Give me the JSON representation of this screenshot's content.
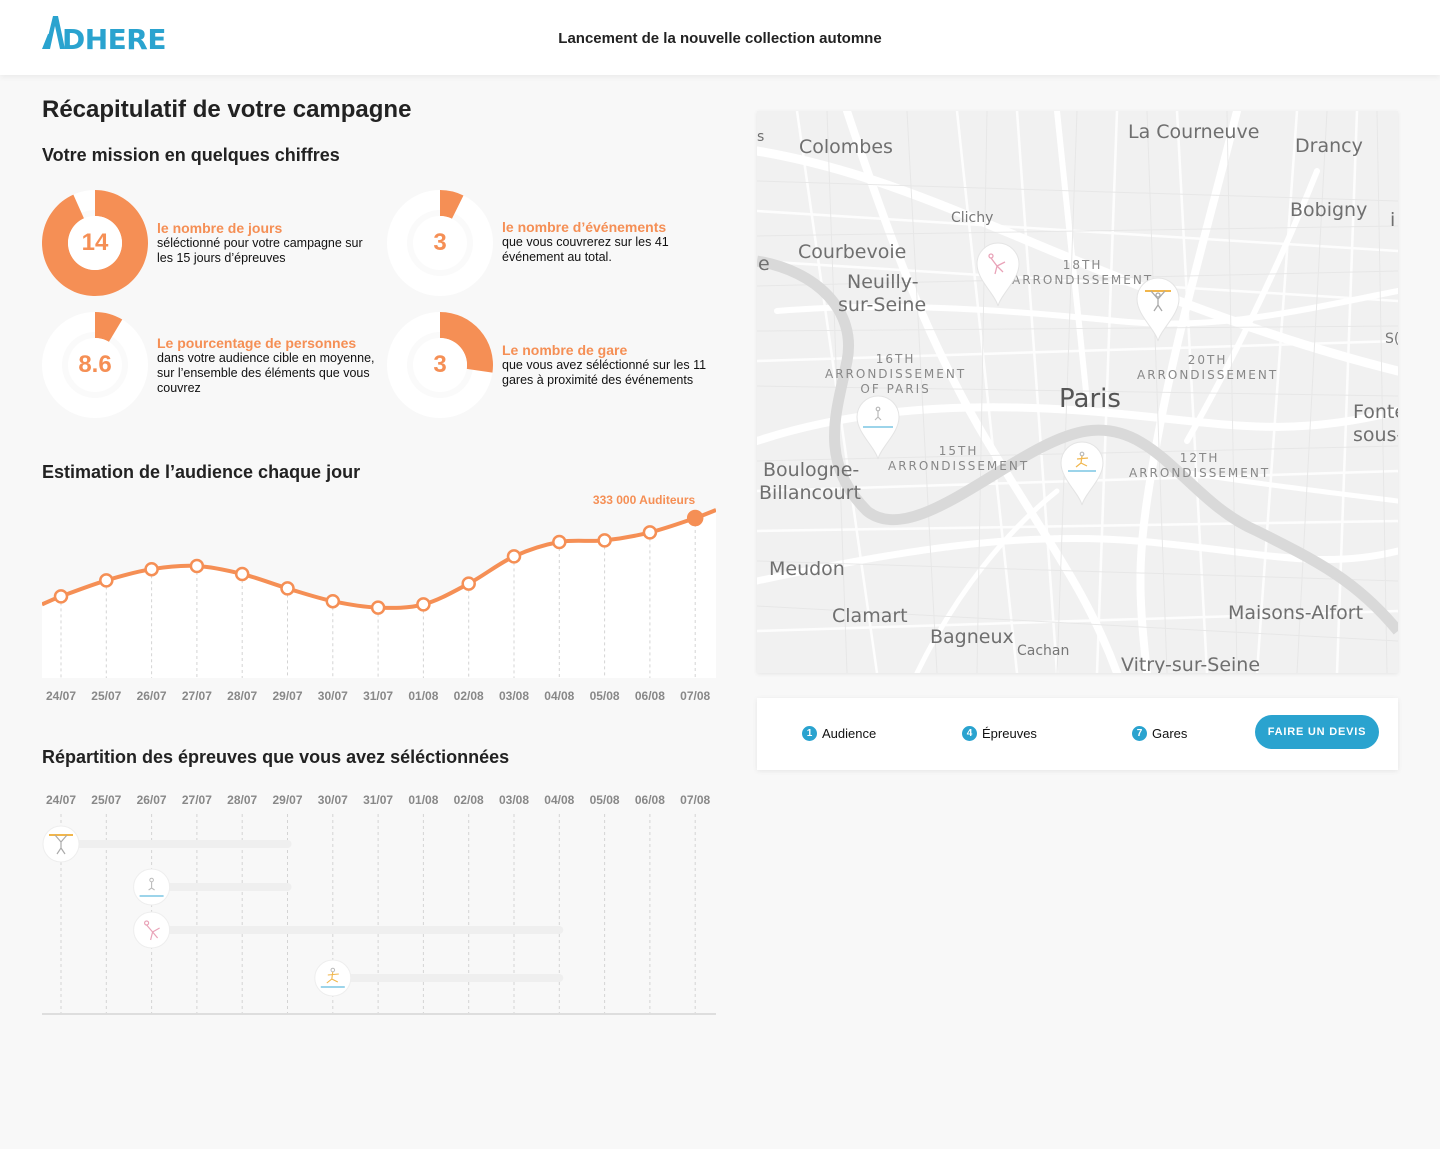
{
  "header": {
    "logo_text": "DHERE",
    "title": "Lancement de la nouvelle collection automne"
  },
  "page": {
    "title": "Récapitulatif de votre campagne",
    "mission_title": "Votre mission en quelques chiffres",
    "audience_title": "Estimation de l’audience chaque jour",
    "epreuves_title": "Répartition des épreuves que vous avez séléctionnées"
  },
  "stats": [
    {
      "value": "14",
      "label": "le nombre de jours",
      "desc": "séléctionné pour votre campagne sur les 15 jours d’épreuves",
      "fraction": 0.933
    },
    {
      "value": "3",
      "label": "le nombre d’événements",
      "desc": "que vous couvrerez sur les 41 événement au total.",
      "fraction": 0.073
    },
    {
      "value": "8.6",
      "label": "Le pourcentage de personnes",
      "desc": "dans votre audience cible en moyenne, sur l’ensemble des éléments que vous couvrez",
      "fraction": 0.086
    },
    {
      "value": "3",
      "label": "Le nombre de gare",
      "desc": "que vous avez séléctionné sur les 11 gares à proximité des événements",
      "fraction": 0.273
    }
  ],
  "chart_data": {
    "type": "line",
    "categories": [
      "24/07",
      "25/07",
      "26/07",
      "27/07",
      "28/07",
      "29/07",
      "30/07",
      "31/07",
      "01/08",
      "02/08",
      "03/08",
      "04/08",
      "05/08",
      "06/08",
      "07/08"
    ],
    "values": [
      0.51,
      0.61,
      0.68,
      0.7,
      0.65,
      0.56,
      0.48,
      0.44,
      0.46,
      0.59,
      0.76,
      0.85,
      0.86,
      0.91,
      1.0
    ],
    "annotation": "333 000 Auditeurs",
    "color": "#f58f55"
  },
  "epreuves": {
    "dates": [
      "24/07",
      "25/07",
      "26/07",
      "27/07",
      "28/07",
      "29/07",
      "30/07",
      "31/07",
      "01/08",
      "02/08",
      "03/08",
      "04/08",
      "05/08",
      "06/08",
      "07/08"
    ],
    "rows": [
      {
        "icon": "weightlifting-icon",
        "start_day": 0,
        "end_day": 5
      },
      {
        "icon": "swimming-icon",
        "start_day": 2,
        "end_day": 5
      },
      {
        "icon": "gymnastics-icon",
        "start_day": 2,
        "end_day": 11
      },
      {
        "icon": "surfing-icon",
        "start_day": 6,
        "end_day": 11
      }
    ]
  },
  "map": {
    "cities": [
      "Colombes",
      "La Courneuve",
      "Drancy",
      "Bobigny",
      "Clichy",
      "Courbevoie",
      "Neuilly-",
      "sur-Seine",
      "Paris",
      "Boulogne-",
      "Billancourt",
      "Meudon",
      "Clamart",
      "Bagneux",
      "Cachan",
      "Vitry-sur-Seine",
      "Maisons-Alfort",
      "Fonte",
      "sous-"
    ],
    "arrondissements": [
      "18TH",
      "ARRONDISSEMENT",
      "16TH",
      "ARRONDISSEMENT",
      "OF PARIS",
      "20TH",
      "ARRONDISSEMENT",
      "15TH",
      "ARRONDISSEMENT",
      "12TH",
      "ARRONDISSEMENT"
    ],
    "edge_fragments": [
      "s",
      "e",
      "i",
      "S("
    ],
    "pins": [
      "gymnastics-icon",
      "weightlifting-icon",
      "swimming-icon",
      "surfing-icon"
    ]
  },
  "summary": {
    "items": [
      {
        "count": "1",
        "label": "Audience"
      },
      {
        "count": "4",
        "label": "Épreuves"
      },
      {
        "count": "7",
        "label": "Gares"
      }
    ],
    "cta_label": "FAIRE UN DEVIS"
  },
  "colors": {
    "accent": "#f58f55",
    "brand": "#2aa3cf"
  }
}
